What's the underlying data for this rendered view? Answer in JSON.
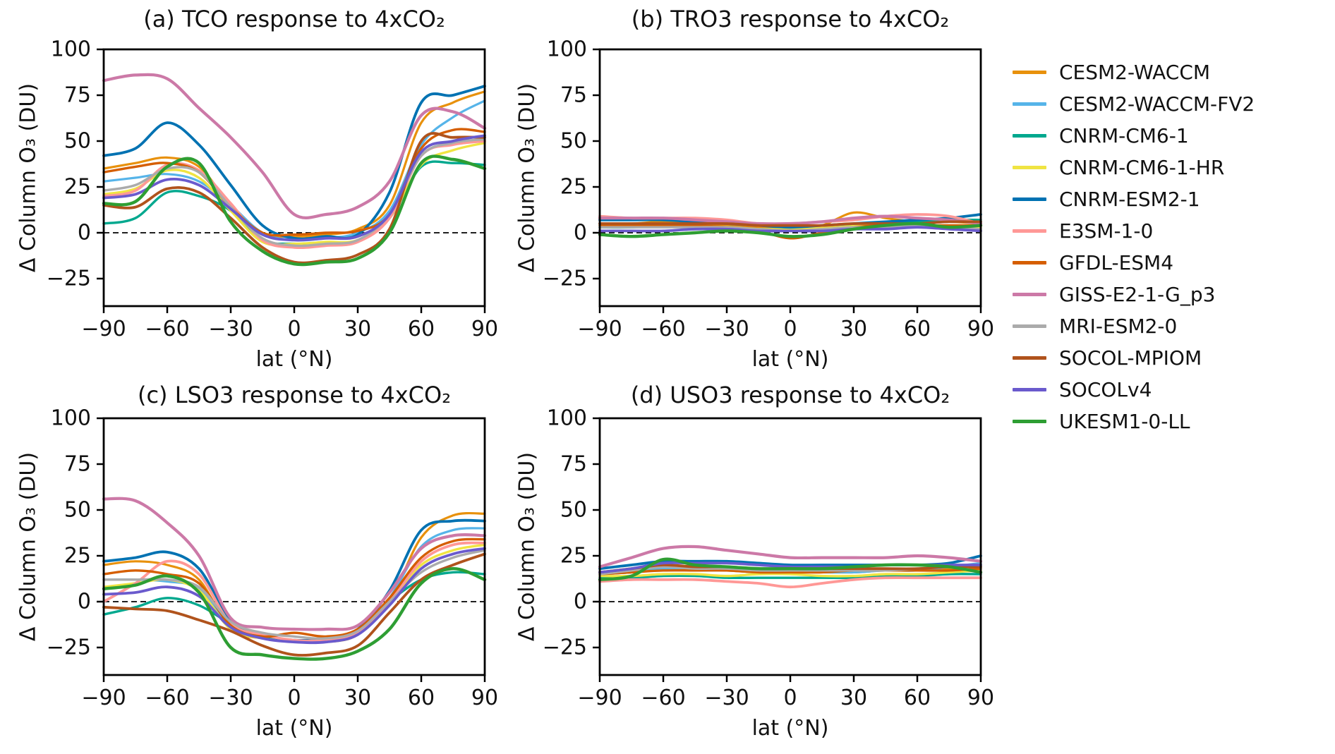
{
  "chart_data": {
    "type": "line",
    "x": [
      -90,
      -75,
      -60,
      -45,
      -30,
      -15,
      0,
      15,
      30,
      45,
      60,
      75,
      90
    ],
    "xlabel": "lat (°N)",
    "ylabel": "Δ Column O₃ (DU)",
    "xlim": [
      -90,
      90
    ],
    "ylim": [
      -40,
      100
    ],
    "xticks": [
      -90,
      -60,
      -30,
      0,
      30,
      60,
      90
    ],
    "yticks": [
      100,
      75,
      50,
      25,
      0,
      -25
    ],
    "zero_line": true,
    "grid": false,
    "legend_position": "right",
    "models": [
      {
        "name": "CESM2-WACCM",
        "color": "#e8910c",
        "lw": 3.2
      },
      {
        "name": "CESM2-WACCM-FV2",
        "color": "#56b4e9",
        "lw": 3.2
      },
      {
        "name": "CNRM-CM6-1",
        "color": "#00a88e",
        "lw": 3.4
      },
      {
        "name": "CNRM-CM6-1-HR",
        "color": "#f0e442",
        "lw": 3.4
      },
      {
        "name": "CNRM-ESM2-1",
        "color": "#0072b2",
        "lw": 3.8
      },
      {
        "name": "E3SM-1-0",
        "color": "#ff9896",
        "lw": 3.8
      },
      {
        "name": "GFDL-ESM4",
        "color": "#d55e00",
        "lw": 3.4
      },
      {
        "name": "GISS-E2-1-G_p3",
        "color": "#cc79a7",
        "lw": 4.2
      },
      {
        "name": "MRI-ESM2-0",
        "color": "#ababab",
        "lw": 3.4
      },
      {
        "name": "SOCOL-MPIOM",
        "color": "#b0531c",
        "lw": 3.8
      },
      {
        "name": "SOCOLv4",
        "color": "#6a5acd",
        "lw": 3.8
      },
      {
        "name": "UKESM1-0-LL",
        "color": "#2e9e33",
        "lw": 4.4
      }
    ],
    "panels": [
      {
        "label": "a",
        "title": "(a) TCO response to 4xCO₂",
        "series": [
          [
            35,
            38,
            41,
            36,
            15,
            0,
            -2,
            -1,
            2,
            15,
            60,
            71,
            77
          ],
          [
            28,
            30,
            32,
            28,
            15,
            0,
            -4,
            -3,
            0,
            12,
            48,
            63,
            72
          ],
          [
            5,
            8,
            22,
            20,
            12,
            -4,
            -6,
            -6,
            -4,
            8,
            36,
            38,
            37
          ],
          [
            21,
            24,
            34,
            30,
            12,
            -5,
            -6,
            -5,
            -4,
            8,
            37,
            45,
            49
          ],
          [
            42,
            46,
            60,
            48,
            26,
            4,
            -3,
            -2,
            -1,
            22,
            71,
            75,
            80
          ],
          [
            20,
            23,
            37,
            34,
            16,
            -4,
            -8,
            -7,
            -5,
            8,
            42,
            48,
            50
          ],
          [
            33,
            36,
            38,
            33,
            14,
            0,
            -1,
            0,
            1,
            10,
            46,
            56,
            55
          ],
          [
            83,
            86,
            84,
            68,
            52,
            33,
            10,
            10,
            14,
            28,
            64,
            66,
            57
          ],
          [
            23,
            26,
            35,
            33,
            14,
            -3,
            -7,
            -6,
            -4,
            10,
            42,
            49,
            51
          ],
          [
            15,
            14,
            24,
            22,
            8,
            -8,
            -16,
            -15,
            -12,
            2,
            50,
            52,
            52
          ],
          [
            19,
            21,
            29,
            26,
            13,
            -1,
            -4,
            -3,
            -2,
            10,
            44,
            50,
            53
          ],
          [
            16,
            17,
            36,
            38,
            6,
            -10,
            -17,
            -16,
            -14,
            0,
            38,
            40,
            35
          ]
        ]
      },
      {
        "label": "b",
        "title": "(b) TRO3 response to 4xCO₂",
        "series": [
          [
            5,
            5,
            6,
            5,
            4,
            3,
            2,
            4,
            11,
            8,
            6,
            6,
            5
          ],
          [
            3,
            3,
            4,
            4,
            3,
            2,
            2,
            3,
            4,
            5,
            5,
            6,
            6
          ],
          [
            3,
            3,
            4,
            4,
            3,
            2,
            2,
            3,
            4,
            5,
            6,
            7,
            7
          ],
          [
            4,
            4,
            4,
            4,
            3,
            2,
            2,
            3,
            4,
            4,
            4,
            3,
            3
          ],
          [
            7,
            7,
            7,
            6,
            5,
            4,
            3,
            4,
            5,
            6,
            7,
            8,
            10
          ],
          [
            9,
            8,
            8,
            8,
            7,
            5,
            5,
            6,
            7,
            9,
            10,
            9,
            5
          ],
          [
            4,
            4,
            4,
            4,
            3,
            1,
            -3,
            0,
            3,
            4,
            4,
            4,
            4
          ],
          [
            8,
            8,
            8,
            7,
            6,
            5,
            5,
            6,
            8,
            9,
            8,
            7,
            5
          ],
          [
            3,
            3,
            3,
            3,
            3,
            2,
            1,
            2,
            3,
            3,
            4,
            3,
            2
          ],
          [
            5,
            5,
            5,
            5,
            5,
            4,
            4,
            4,
            5,
            5,
            5,
            6,
            6
          ],
          [
            1,
            1,
            1,
            2,
            2,
            1,
            1,
            1,
            2,
            2,
            3,
            2,
            1
          ],
          [
            -1,
            -2,
            -1,
            0,
            1,
            0,
            -2,
            -1,
            2,
            4,
            5,
            3,
            4
          ]
        ]
      },
      {
        "label": "c",
        "title": "(c) LSO3 response to 4xCO₂",
        "series": [
          [
            20,
            22,
            20,
            12,
            -15,
            -20,
            -22,
            -22,
            -18,
            0,
            35,
            47,
            48
          ],
          [
            12,
            12,
            11,
            7,
            -13,
            -19,
            -21,
            -21,
            -17,
            2,
            30,
            39,
            40
          ],
          [
            -7,
            -3,
            2,
            -2,
            -12,
            -19,
            -21,
            -21,
            -17,
            0,
            12,
            16,
            15
          ],
          [
            8,
            10,
            12,
            6,
            -15,
            -20,
            -22,
            -22,
            -18,
            0,
            20,
            28,
            31
          ],
          [
            22,
            24,
            27,
            18,
            -10,
            -18,
            -21,
            -20,
            -15,
            6,
            39,
            44,
            44
          ],
          [
            0,
            10,
            22,
            15,
            -12,
            -18,
            -21,
            -21,
            -17,
            0,
            22,
            31,
            32
          ],
          [
            15,
            17,
            15,
            10,
            -13,
            -19,
            -17,
            -19,
            -15,
            2,
            24,
            33,
            34
          ],
          [
            56,
            55,
            43,
            25,
            -9,
            -14,
            -15,
            -15,
            -13,
            5,
            29,
            36,
            36
          ],
          [
            12,
            12,
            12,
            8,
            -11,
            -17,
            -19,
            -20,
            -16,
            0,
            16,
            24,
            28
          ],
          [
            -3,
            -4,
            -5,
            -10,
            -16,
            -24,
            -29,
            -28,
            -24,
            -6,
            12,
            20,
            26
          ],
          [
            4,
            5,
            8,
            3,
            -14,
            -20,
            -22,
            -22,
            -18,
            -2,
            18,
            26,
            29
          ],
          [
            7,
            9,
            14,
            5,
            -25,
            -29,
            -31,
            -31,
            -27,
            -15,
            10,
            18,
            12
          ]
        ]
      },
      {
        "label": "d",
        "title": "(d) USO3 response to 4xCO₂",
        "series": [
          [
            15,
            16,
            18,
            18,
            17,
            16,
            16,
            16,
            16,
            17,
            17,
            18,
            20
          ],
          [
            15,
            16,
            18,
            17,
            17,
            16,
            16,
            16,
            16,
            17,
            17,
            19,
            21
          ],
          [
            13,
            13,
            14,
            14,
            13,
            13,
            13,
            13,
            13,
            14,
            14,
            15,
            15
          ],
          [
            14,
            14,
            15,
            15,
            14,
            15,
            15,
            14,
            14,
            15,
            15,
            16,
            17
          ],
          [
            18,
            20,
            22,
            22,
            22,
            21,
            20,
            20,
            20,
            20,
            20,
            21,
            25
          ],
          [
            11,
            12,
            12,
            12,
            11,
            10,
            8,
            10,
            12,
            13,
            13,
            13,
            13
          ],
          [
            15,
            16,
            17,
            17,
            17,
            16,
            16,
            16,
            17,
            17,
            17,
            17,
            18
          ],
          [
            19,
            24,
            29,
            30,
            28,
            26,
            24,
            24,
            24,
            24,
            25,
            24,
            22
          ],
          [
            15,
            17,
            19,
            18,
            18,
            17,
            17,
            17,
            17,
            17,
            18,
            19,
            20
          ],
          [
            16,
            18,
            20,
            19,
            19,
            18,
            18,
            18,
            18,
            18,
            18,
            19,
            19
          ],
          [
            16,
            18,
            21,
            21,
            21,
            20,
            19,
            19,
            19,
            20,
            20,
            20,
            20
          ],
          [
            12,
            14,
            23,
            20,
            19,
            18,
            18,
            18,
            19,
            20,
            20,
            19,
            16
          ]
        ]
      }
    ],
    "style": {
      "spine_color": "#000000",
      "tick_color": "#000000",
      "text_color": "#111111",
      "zero_line_color": "#000000",
      "background": "#ffffff"
    }
  }
}
